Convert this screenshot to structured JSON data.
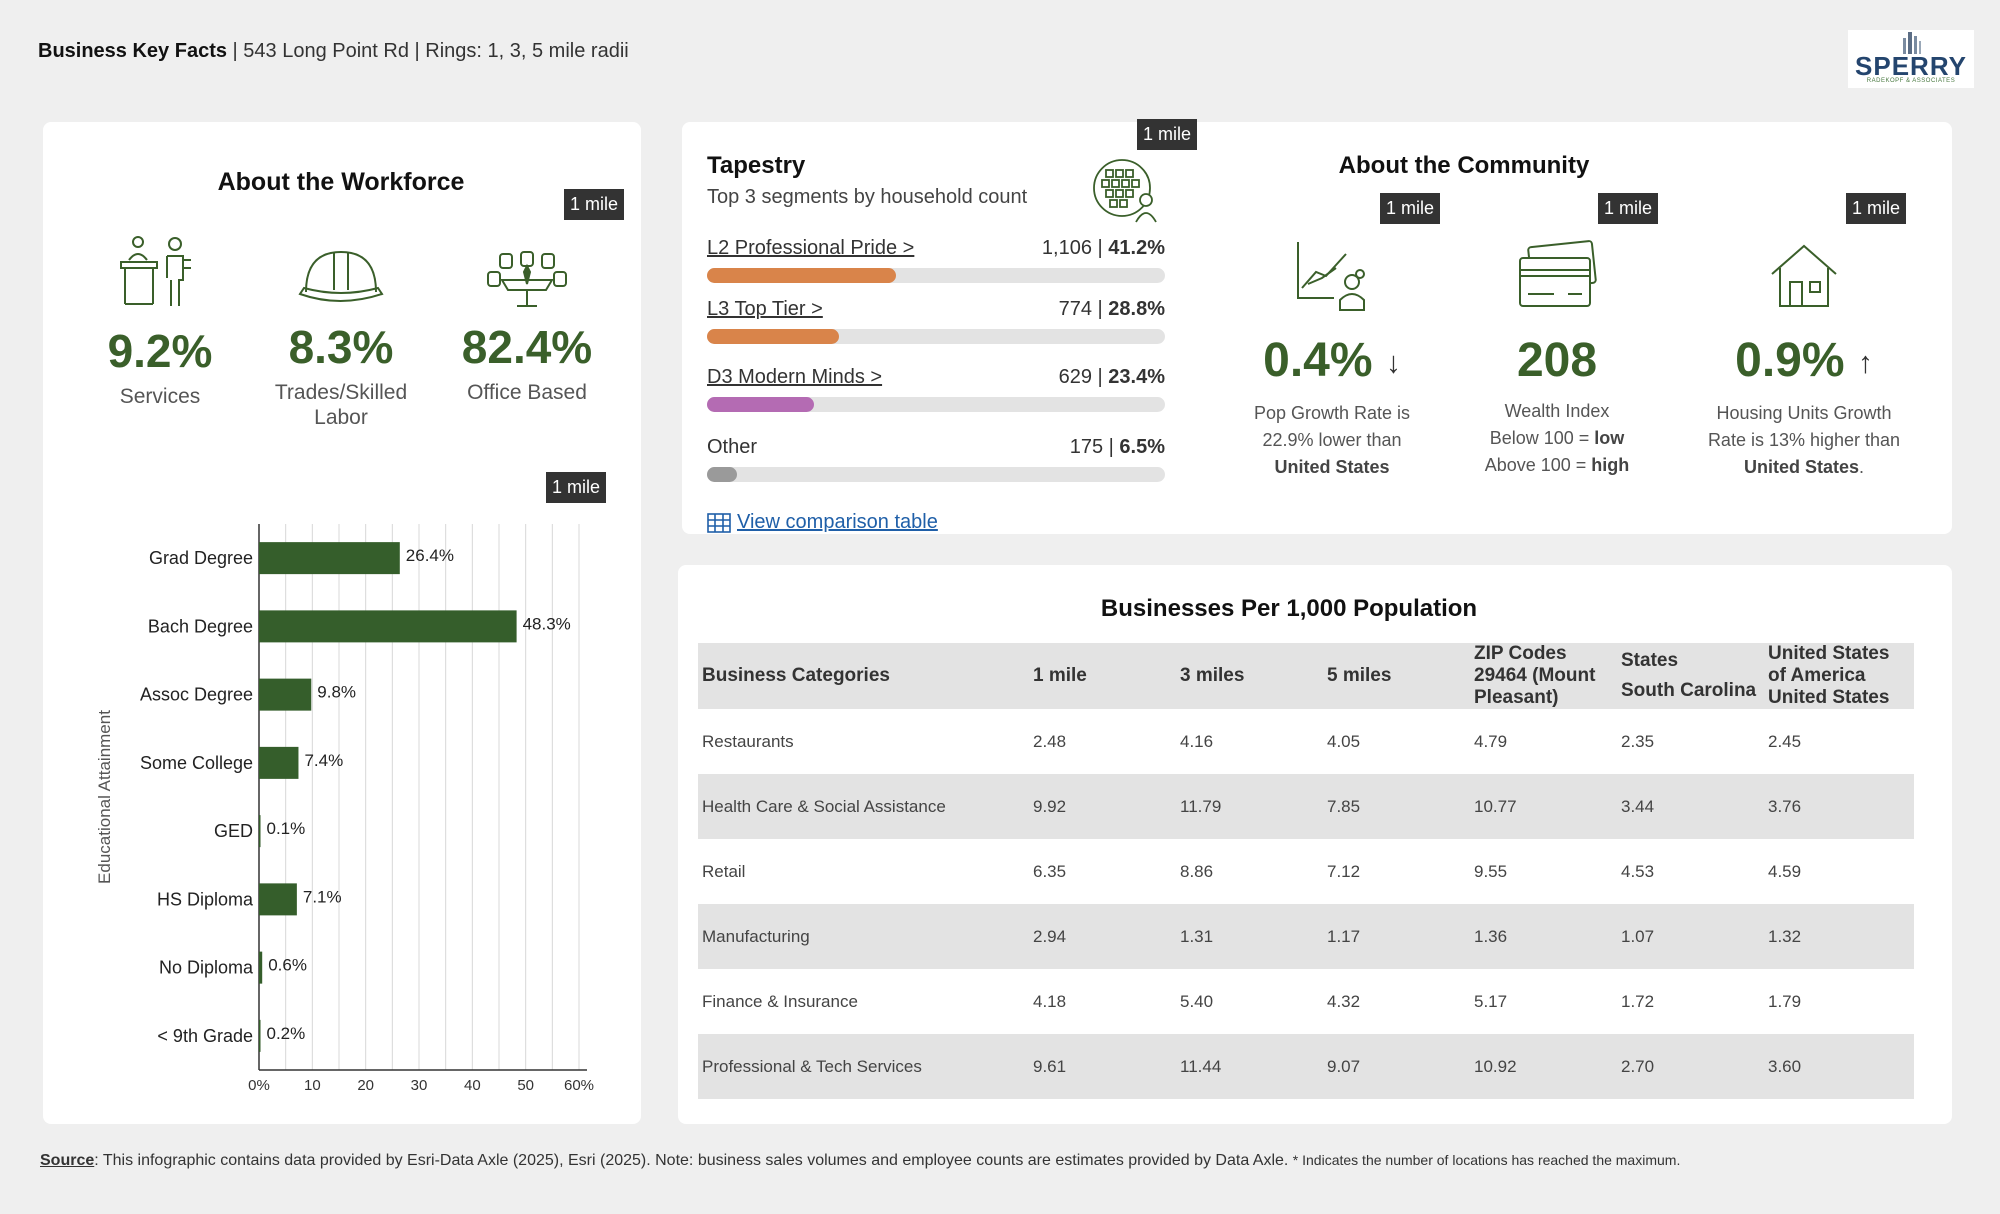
{
  "header": {
    "title": "Business Key Facts",
    "subtitle": " | 543 Long Point Rd | Rings: 1, 3, 5 mile radii"
  },
  "logo": {
    "name": "SPERRY",
    "tagline": "RADEKOPF & ASSOCIATES"
  },
  "radius_tag": "1 mile",
  "workforce": {
    "title": "About the Workforce",
    "items": [
      {
        "value": "9.2%",
        "label": "Services",
        "icon": "receptionist-icon"
      },
      {
        "value": "8.3%",
        "label": "Trades/Skilled Labor",
        "icon": "hard-hat-icon"
      },
      {
        "value": "82.4%",
        "label": "Office Based",
        "icon": "meeting-table-icon"
      }
    ]
  },
  "chart_data": {
    "type": "bar",
    "orientation": "horizontal",
    "ylabel": "Educational Attainment",
    "categories": [
      "Grad Degree",
      "Bach Degree",
      "Assoc Degree",
      "Some College",
      "GED",
      "HS Diploma",
      "No Diploma",
      "< 9th Grade"
    ],
    "values": [
      26.4,
      48.3,
      9.8,
      7.4,
      0.1,
      7.1,
      0.6,
      0.2
    ],
    "value_labels": [
      "26.4%",
      "48.3%",
      "9.8%",
      "7.4%",
      "0.1%",
      "7.1%",
      "0.6%",
      "0.2%"
    ],
    "xlim": [
      0,
      60
    ],
    "xticks": [
      "0%",
      "10",
      "20",
      "30",
      "40",
      "50",
      "60%"
    ],
    "color": "#355e2b",
    "grid": true
  },
  "tapestry": {
    "title": "Tapestry",
    "subtitle": "Top 3 segments by household count",
    "segments": [
      {
        "name": "L2 Professional Pride >",
        "count": "1,106",
        "pct": "41.2%",
        "share": 41.2,
        "color": "#d9844a",
        "link": true
      },
      {
        "name": "L3 Top Tier >",
        "count": "774",
        "pct": "28.8%",
        "share": 28.8,
        "color": "#d9844a",
        "link": true
      },
      {
        "name": "D3 Modern Minds >",
        "count": "629",
        "pct": "23.4%",
        "share": 23.4,
        "color": "#b46bb3",
        "link": true
      },
      {
        "name": "Other",
        "count": "175",
        "pct": "6.5%",
        "share": 6.5,
        "color": "#9a9a9a",
        "link": false
      }
    ],
    "link_label": "View comparison table"
  },
  "community": {
    "title": "About the Community",
    "items": [
      {
        "value": "0.4%",
        "arrow": "↓",
        "line1": "Pop Growth Rate is",
        "line2": "22.9% lower than",
        "line3": "United States"
      },
      {
        "value": "208",
        "arrow": "",
        "line1": "Wealth Index",
        "line2": "Below 100 = ",
        "line2b": "low",
        "line3": "Above 100 = ",
        "line3b": "high"
      },
      {
        "value": "0.9%",
        "arrow": "↑",
        "line1": "Housing Units Growth",
        "line2": "Rate is 13% higher than",
        "line3": "United States",
        "line3tail": "."
      }
    ]
  },
  "business_table": {
    "title": "Businesses Per 1,000 Population",
    "headers": {
      "category": "Business Categories",
      "mile1": "1 mile",
      "mile3": "3 miles",
      "mile5": "5 miles",
      "zip": "ZIP Codes 29464 (Mount Pleasant)",
      "states_top": "States",
      "states_bottom": "South Carolina",
      "us_top": "United States of America",
      "us_bottom": "United States"
    },
    "rows": [
      [
        "Restaurants",
        "2.48",
        "4.16",
        "4.05",
        "4.79",
        "2.35",
        "2.45"
      ],
      [
        "Health Care & Social Assistance",
        "9.92",
        "11.79",
        "7.85",
        "10.77",
        "3.44",
        "3.76"
      ],
      [
        "Retail",
        "6.35",
        "8.86",
        "7.12",
        "9.55",
        "4.53",
        "4.59"
      ],
      [
        "Manufacturing",
        "2.94",
        "1.31",
        "1.17",
        "1.36",
        "1.07",
        "1.32"
      ],
      [
        "Finance & Insurance",
        "4.18",
        "5.40",
        "4.32",
        "5.17",
        "1.72",
        "1.79"
      ],
      [
        "Professional & Tech Services",
        "9.61",
        "11.44",
        "9.07",
        "10.92",
        "2.70",
        "3.60"
      ]
    ]
  },
  "footer": {
    "source_label": "Source",
    "text": ": This infographic contains data provided by Esri-Data Axle (2025), Esri (2025). Note: business sales volumes and employee counts are estimates provided by Data Axle. ",
    "note": "* Indicates the number of locations has reached the maximum."
  }
}
